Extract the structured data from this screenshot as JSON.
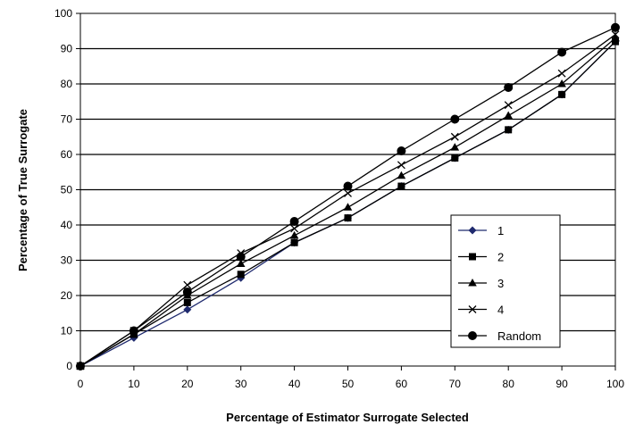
{
  "chart_data": {
    "type": "line",
    "title": "",
    "xlabel": "Percentage of Estimator Surrogate Selected",
    "ylabel": "Percentage of True Surrogate",
    "xlim": [
      0,
      100
    ],
    "ylim": [
      0,
      100
    ],
    "x_ticks": [
      0,
      10,
      20,
      30,
      40,
      50,
      60,
      70,
      80,
      90,
      100
    ],
    "y_ticks": [
      0,
      10,
      20,
      30,
      40,
      50,
      60,
      70,
      80,
      90,
      100
    ],
    "grid": "horizontal",
    "legend_position": "right-center",
    "x": [
      0,
      10,
      20,
      30,
      40,
      50,
      60,
      70,
      80,
      90,
      100
    ],
    "series": [
      {
        "name": "1",
        "marker": "diamond",
        "color": "#1f2a6e",
        "values": [
          0,
          8,
          16,
          25,
          35,
          42,
          51,
          59,
          67,
          77,
          92
        ]
      },
      {
        "name": "2",
        "marker": "square",
        "color": "#000000",
        "values": [
          0,
          9,
          18,
          26,
          35,
          42,
          51,
          59,
          67,
          77,
          92
        ]
      },
      {
        "name": "3",
        "marker": "triangle",
        "color": "#000000",
        "values": [
          0,
          9,
          20,
          29,
          37,
          45,
          54,
          62,
          71,
          80,
          93
        ]
      },
      {
        "name": "4",
        "marker": "x",
        "color": "#000000",
        "values": [
          0,
          10,
          23,
          32,
          39,
          49,
          57,
          65,
          74,
          83,
          94
        ]
      },
      {
        "name": "Random",
        "marker": "circle",
        "color": "#000000",
        "values": [
          0,
          10,
          21,
          31,
          41,
          51,
          61,
          70,
          79,
          89,
          96
        ]
      }
    ]
  }
}
